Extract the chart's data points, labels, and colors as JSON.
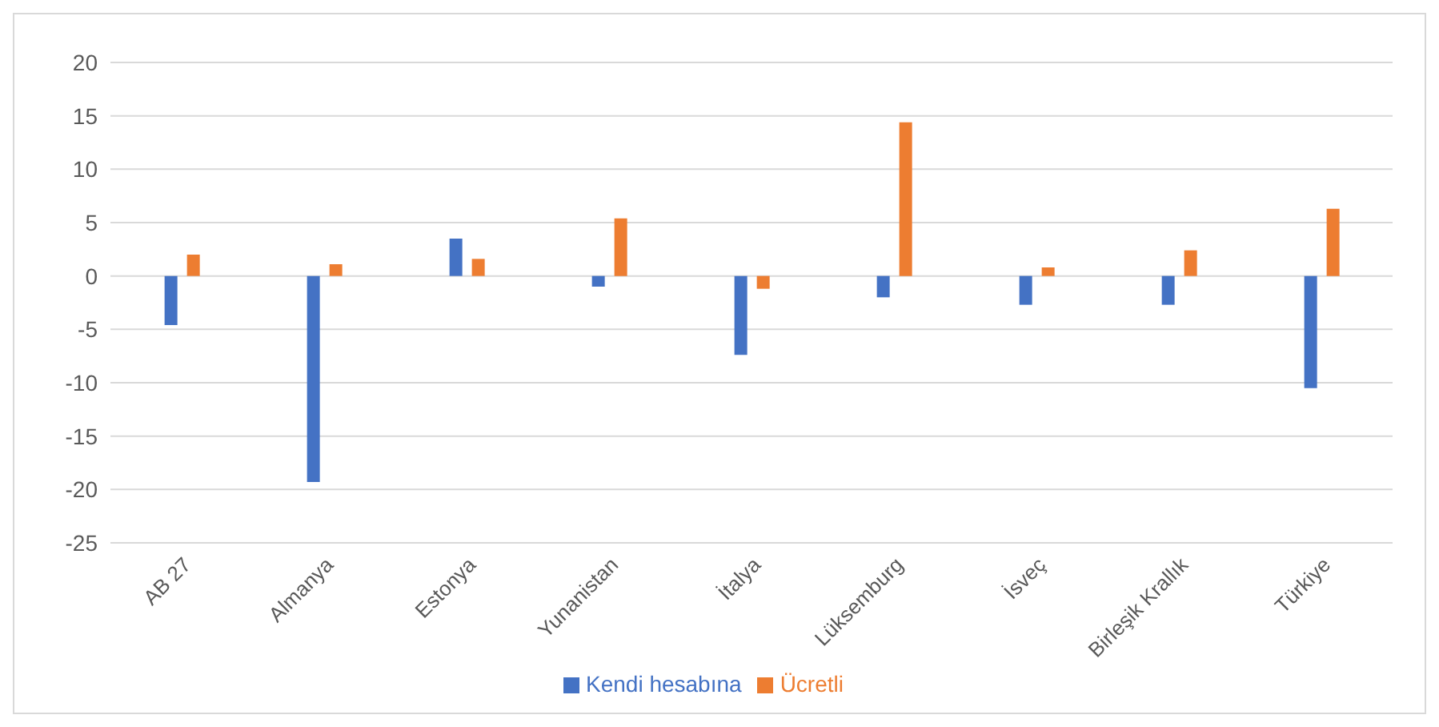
{
  "chart_data": {
    "type": "bar",
    "categories": [
      "AB 27",
      "Almanya",
      "Estonya",
      "Yunanistan",
      "İtalya",
      "Lüksemburg",
      "İsveç",
      "Birleşik Krallık",
      "Türkiye"
    ],
    "series": [
      {
        "name": "Kendi hesabına",
        "color": "#4472c4",
        "values": [
          -4.6,
          -19.3,
          3.5,
          -1.0,
          -7.4,
          -2.0,
          -2.7,
          -2.7,
          -10.5
        ]
      },
      {
        "name": "Ücretli",
        "color": "#ed7d31",
        "values": [
          2.0,
          1.1,
          1.6,
          5.4,
          -1.2,
          14.4,
          0.8,
          2.4,
          6.3
        ]
      }
    ],
    "ylim": [
      -25,
      20
    ],
    "yticks": [
      -25,
      -20,
      -15,
      -10,
      -5,
      0,
      5,
      10,
      15,
      20
    ],
    "grid": "y",
    "legend": "bottom"
  }
}
